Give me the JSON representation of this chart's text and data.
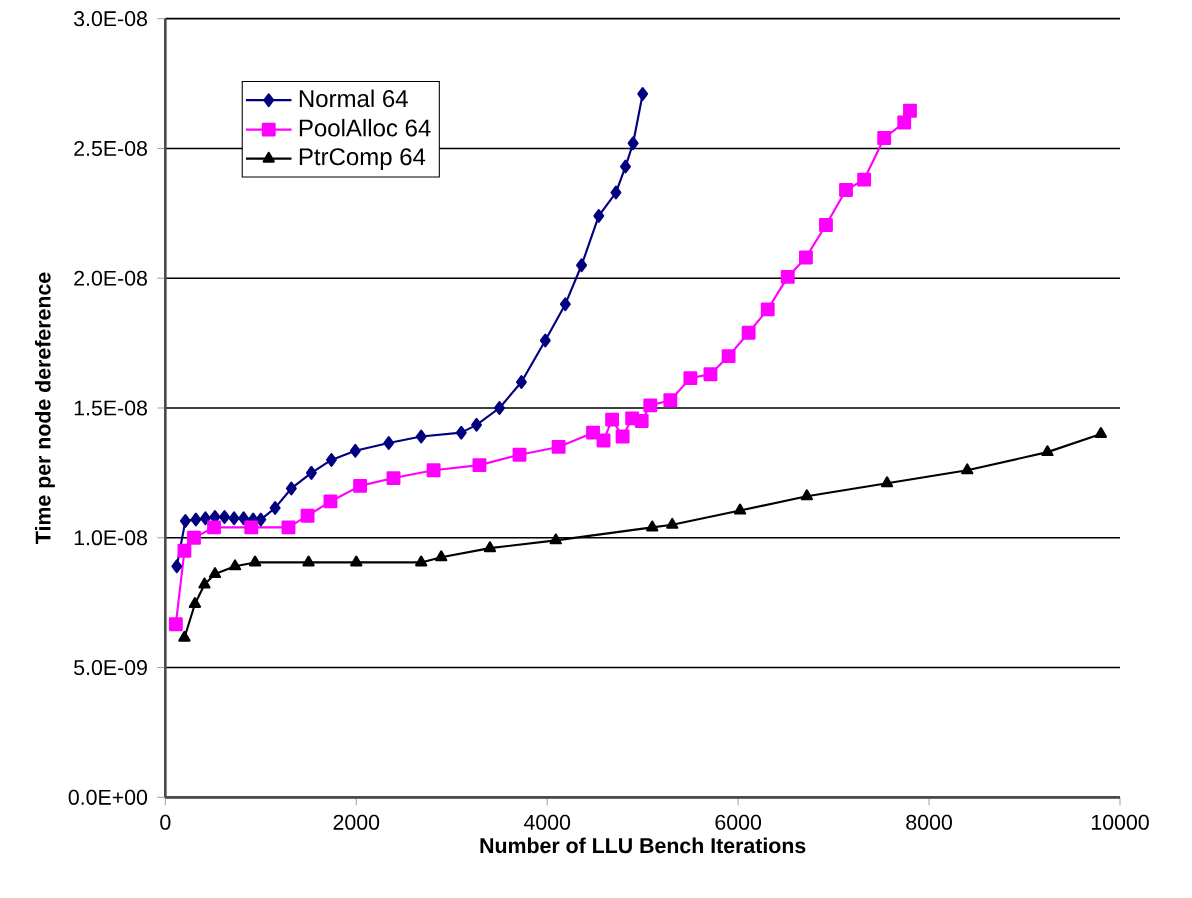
{
  "chart_data": {
    "type": "line",
    "xlabel": "Number of LLU Bench Iterations",
    "ylabel": "Time per node dereference",
    "xlim": [
      0,
      10000
    ],
    "xticks": [
      0,
      2000,
      4000,
      6000,
      8000,
      10000
    ],
    "ylim": [
      0,
      3e-08
    ],
    "yticks": [
      {
        "value": 0,
        "label": "0.0E+00"
      },
      {
        "value": 5e-09,
        "label": "5.0E-09"
      },
      {
        "value": 1e-08,
        "label": "1.0E-08"
      },
      {
        "value": 1.5e-08,
        "label": "1.5E-08"
      },
      {
        "value": 2e-08,
        "label": "2.0E-08"
      },
      {
        "value": 2.5e-08,
        "label": "2.5E-08"
      },
      {
        "value": 3e-08,
        "label": "3.0E-08"
      }
    ],
    "grid": "y",
    "legend": "top left",
    "series": [
      {
        "name": "Normal 64",
        "color": "#000080",
        "marker": "diamond",
        "x": [
          120,
          210,
          320,
          420,
          520,
          620,
          720,
          820,
          920,
          1000,
          1150,
          1320,
          1530,
          1740,
          1990,
          2340,
          2680,
          3100,
          3260,
          3500,
          3730,
          3980,
          4190,
          4360,
          4540,
          4720,
          4820,
          4900,
          5000
        ],
        "values": [
          8.9e-09,
          1.065e-08,
          1.07e-08,
          1.075e-08,
          1.08e-08,
          1.08e-08,
          1.075e-08,
          1.075e-08,
          1.07e-08,
          1.07e-08,
          1.115e-08,
          1.19e-08,
          1.25e-08,
          1.3e-08,
          1.335e-08,
          1.365e-08,
          1.39e-08,
          1.405e-08,
          1.435e-08,
          1.5e-08,
          1.6e-08,
          1.76e-08,
          1.9e-08,
          2.05e-08,
          2.24e-08,
          2.33e-08,
          2.43e-08,
          2.52e-08,
          2.71e-08
        ]
      },
      {
        "name": "PoolAlloc 64",
        "color": "#ff00ff",
        "marker": "square",
        "x": [
          110,
          200,
          300,
          510,
          900,
          1290,
          1490,
          1730,
          2040,
          2390,
          2810,
          3290,
          3710,
          4120,
          4480,
          4590,
          4680,
          4790,
          4890,
          4990,
          5080,
          5290,
          5500,
          5710,
          5900,
          6110,
          6310,
          6520,
          6710,
          6920,
          7130,
          7320,
          7530,
          7740,
          7800
        ],
        "values": [
          6.67e-09,
          9.5e-09,
          1e-08,
          1.04e-08,
          1.04e-08,
          1.04e-08,
          1.085e-08,
          1.14e-08,
          1.2e-08,
          1.23e-08,
          1.26e-08,
          1.28e-08,
          1.32e-08,
          1.35e-08,
          1.405e-08,
          1.375e-08,
          1.455e-08,
          1.39e-08,
          1.46e-08,
          1.45e-08,
          1.51e-08,
          1.53e-08,
          1.615e-08,
          1.63e-08,
          1.7e-08,
          1.79e-08,
          1.88e-08,
          2.005e-08,
          2.08e-08,
          2.205e-08,
          2.34e-08,
          2.38e-08,
          2.54e-08,
          2.6e-08,
          2.645e-08
        ]
      },
      {
        "name": "PtrComp 64",
        "color": "#000000",
        "marker": "triangle",
        "x": [
          200,
          310,
          410,
          520,
          730,
          940,
          1500,
          2000,
          2680,
          2890,
          3400,
          4090,
          5100,
          5310,
          6020,
          6720,
          7560,
          8400,
          9240,
          9800
        ],
        "values": [
          6.15e-09,
          7.45e-09,
          8.2e-09,
          8.6e-09,
          8.9e-09,
          9.05e-09,
          9.05e-09,
          9.05e-09,
          9.05e-09,
          9.25e-09,
          9.6e-09,
          9.9e-09,
          1.04e-08,
          1.05e-08,
          1.105e-08,
          1.16e-08,
          1.21e-08,
          1.26e-08,
          1.33e-08,
          1.4e-08
        ]
      }
    ]
  }
}
